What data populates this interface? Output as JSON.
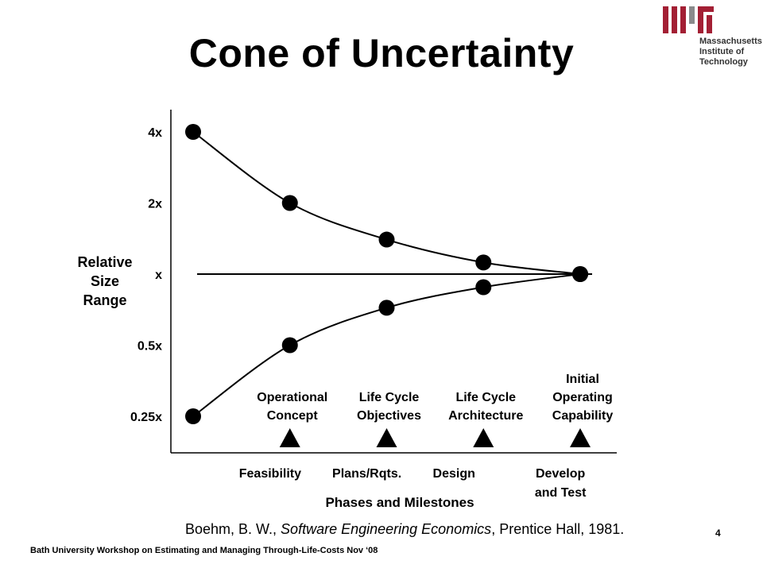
{
  "slide": {
    "title": "Cone of Uncertainty",
    "logo": {
      "text_lines": [
        "Massachusetts",
        "Institute of",
        "Technology"
      ],
      "mark_color": "#a31f34"
    },
    "citation": {
      "prefix": "Boehm, B. W., ",
      "work": "Software Engineering Economics",
      "suffix": ", Prentice Hall, 1981."
    },
    "footer": "Bath University Workshop on Estimating and Managing Through-Life-Costs  Nov ‘08",
    "page_number": "4"
  },
  "chart_data": {
    "type": "line",
    "title": "Cone of Uncertainty",
    "xlabel": "Phases and Milestones",
    "ylabel": [
      "Relative",
      "Size",
      "Range"
    ],
    "y_scale": "log2",
    "y_ticks": [
      {
        "label": "4x",
        "value": 4
      },
      {
        "label": "2x",
        "value": 2
      },
      {
        "label": "x",
        "value": 1
      },
      {
        "label": "0.5x",
        "value": 0.5
      },
      {
        "label": "0.25x",
        "value": 0.25
      }
    ],
    "phases": [
      {
        "lines": [
          "Feasibility"
        ],
        "x": 0.5
      },
      {
        "lines": [
          "Plans/Rqts."
        ],
        "x": 1.5
      },
      {
        "lines": [
          "Design"
        ],
        "x": 2.4
      },
      {
        "lines": [
          "Develop",
          "and Test"
        ],
        "x": 3.5
      }
    ],
    "milestones": [
      {
        "lines": [
          "Operational",
          "Concept"
        ],
        "x": 1
      },
      {
        "lines": [
          "Life Cycle",
          "Objectives"
        ],
        "x": 2
      },
      {
        "lines": [
          "Life Cycle",
          "Architecture"
        ],
        "x": 3
      },
      {
        "lines": [
          "Initial",
          "Operating",
          "Capability"
        ],
        "x": 4
      }
    ],
    "series": [
      {
        "name": "",
        "x": [
          0,
          1,
          2,
          3,
          4
        ],
        "y": [
          4,
          2,
          1.4,
          1.12,
          1
        ]
      },
      {
        "name": "",
        "x": [
          0,
          1,
          2,
          3,
          4
        ],
        "y": [
          0.25,
          0.5,
          0.72,
          0.88,
          1
        ]
      }
    ],
    "reference_line": {
      "y": 1
    },
    "grid": false,
    "legend": "none"
  }
}
